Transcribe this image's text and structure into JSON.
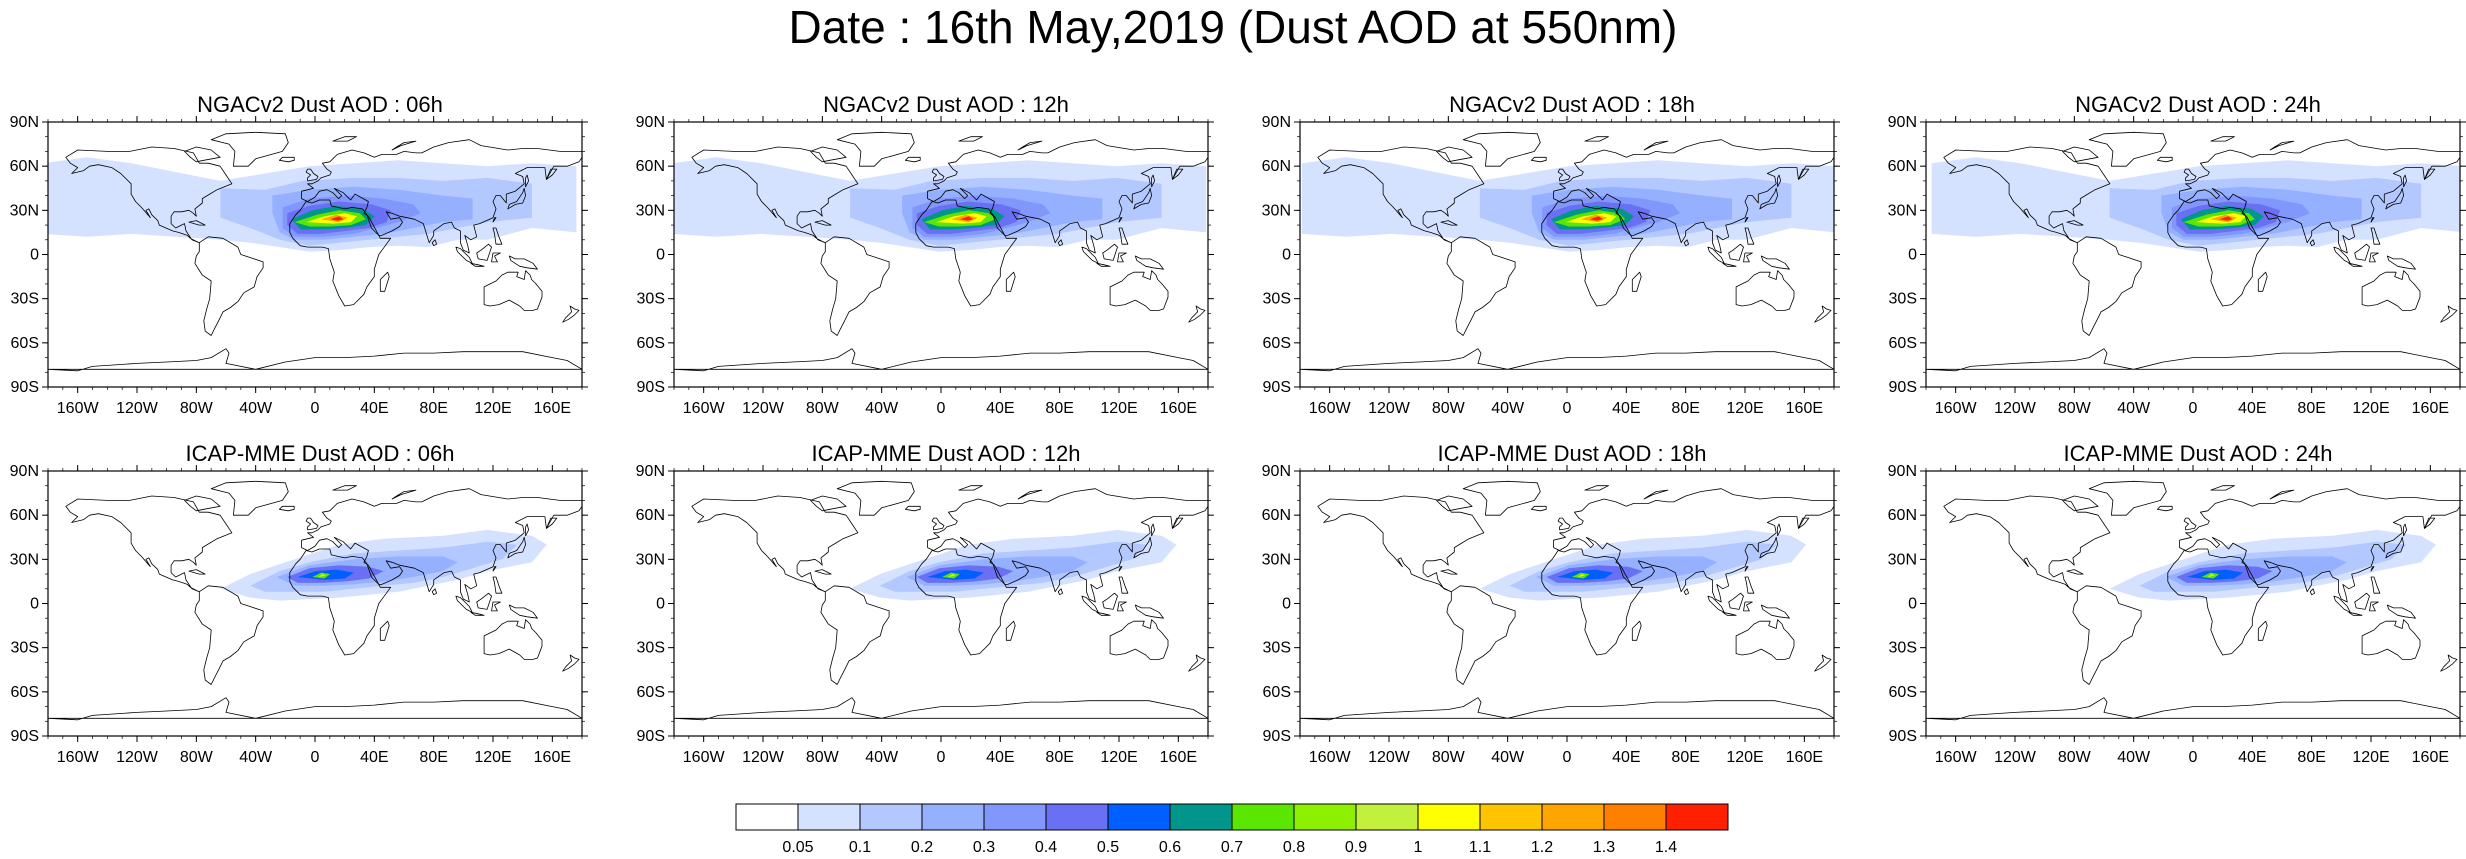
{
  "title": "Date : 16th May,2019 (Dust AOD at 550nm)",
  "panels": [
    {
      "title": "NGACv2 Dust AOD : 06h"
    },
    {
      "title": "NGACv2 Dust AOD : 12h"
    },
    {
      "title": "NGACv2 Dust AOD : 18h"
    },
    {
      "title": "NGACv2 Dust AOD : 24h"
    },
    {
      "title": "ICAP-MME Dust AOD : 06h"
    },
    {
      "title": "ICAP-MME Dust AOD : 12h"
    },
    {
      "title": "ICAP-MME Dust AOD : 18h"
    },
    {
      "title": "ICAP-MME Dust AOD : 24h"
    }
  ],
  "axes": {
    "lat_labels": [
      "90N",
      "60N",
      "30N",
      "0",
      "30S",
      "60S",
      "90S"
    ],
    "lat_values": [
      90,
      60,
      30,
      0,
      -30,
      -60,
      -90
    ],
    "lon_labels": [
      "160W",
      "120W",
      "80W",
      "40W",
      "0",
      "40E",
      "80E",
      "120E",
      "160E"
    ],
    "lon_values": [
      -160,
      -120,
      -80,
      -40,
      0,
      40,
      80,
      120,
      160
    ]
  },
  "colorbar": {
    "labels": [
      "0.05",
      "0.1",
      "0.2",
      "0.3",
      "0.4",
      "0.5",
      "0.6",
      "0.7",
      "0.8",
      "0.9",
      "1",
      "1.1",
      "1.2",
      "1.3",
      "1.4"
    ],
    "colors": [
      "#ffffff",
      "#d5e2ff",
      "#b3c8ff",
      "#95b0ff",
      "#8297fb",
      "#6a70f4",
      "#0060ff",
      "#00968c",
      "#5ae600",
      "#8cf000",
      "#c3f03c",
      "#ffff00",
      "#ffc400",
      "#ffa500",
      "#ff7f00",
      "#ff2000"
    ]
  }
}
